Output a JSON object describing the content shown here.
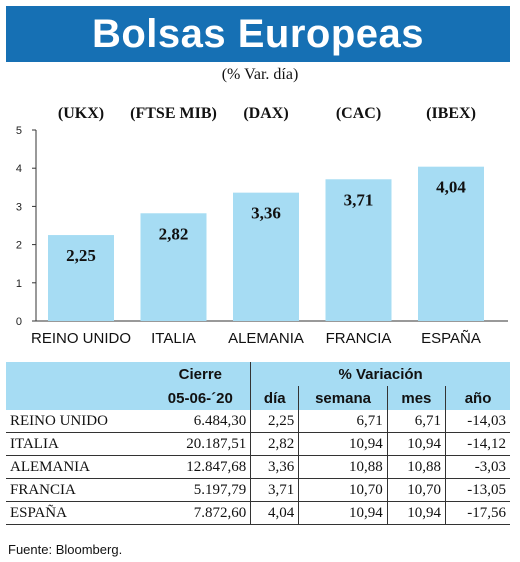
{
  "header": {
    "title": "Bolsas Europeas",
    "subtitle": "(% Var. día)"
  },
  "chart_data": {
    "type": "bar",
    "codes": [
      "(UKX)",
      "(FTSE MIB)",
      "(DAX)",
      "(CAC)",
      "(IBEX)"
    ],
    "categories": [
      "REINO UNIDO",
      "ITALIA",
      "ALEMANIA",
      "FRANCIA",
      "ESPAÑA"
    ],
    "values": [
      2.25,
      2.82,
      3.36,
      3.71,
      4.04
    ],
    "value_labels": [
      "2,25",
      "2,82",
      "3,36",
      "3,71",
      "4,04"
    ],
    "ylim": [
      0,
      5
    ],
    "yticks": [
      0,
      1,
      2,
      3,
      4,
      5
    ],
    "bar_color": "#a6dcf3",
    "grid": false
  },
  "table": {
    "group_headers": [
      "Cierre",
      "% Variación"
    ],
    "columns": [
      "05-06-´20",
      "día",
      "semana",
      "mes",
      "año"
    ],
    "rows": [
      {
        "name": "REINO UNIDO",
        "cierre": "6.484,30",
        "dia": "2,25",
        "semana": "6,71",
        "mes": "6,71",
        "ano": "-14,03"
      },
      {
        "name": "ITALIA",
        "cierre": "20.187,51",
        "dia": "2,82",
        "semana": "10,94",
        "mes": "10,94",
        "ano": "-14,12"
      },
      {
        "name": "ALEMANIA",
        "cierre": "12.847,68",
        "dia": "3,36",
        "semana": "10,88",
        "mes": "10,88",
        "ano": "-3,03"
      },
      {
        "name": "FRANCIA",
        "cierre": "5.197,79",
        "dia": "3,71",
        "semana": "10,70",
        "mes": "10,70",
        "ano": "-13,05"
      },
      {
        "name": "ESPAÑA",
        "cierre": "7.872,60",
        "dia": "4,04",
        "semana": "10,94",
        "mes": "10,94",
        "ano": "-17,56"
      }
    ]
  },
  "source": "Fuente: Bloomberg.",
  "colors": {
    "header_bg": "#1670b4",
    "header_text": "#ffffff",
    "table_header_bg": "#a6dcf3"
  }
}
